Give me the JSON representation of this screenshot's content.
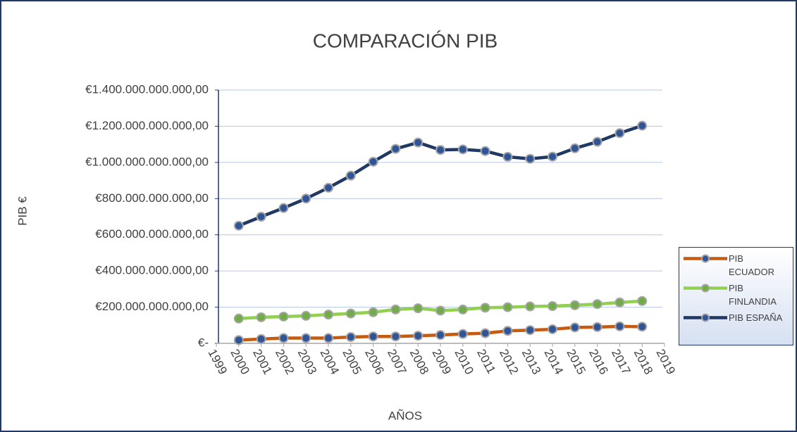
{
  "chart_data": {
    "type": "line",
    "title": "COMPARACIÓN PIB",
    "y_label": "PIB €",
    "x_label": "AÑOS",
    "x": [
      2000,
      2001,
      2002,
      2003,
      2004,
      2005,
      2006,
      2007,
      2008,
      2009,
      2010,
      2011,
      2012,
      2013,
      2014,
      2015,
      2016,
      2017,
      2018
    ],
    "xlim": [
      1999,
      2019
    ],
    "xticks": [
      1999,
      2000,
      2001,
      2002,
      2003,
      2004,
      2005,
      2006,
      2007,
      2008,
      2009,
      2010,
      2011,
      2012,
      2013,
      2014,
      2015,
      2016,
      2017,
      2018,
      2019
    ],
    "ylim": [
      0,
      1400000000000
    ],
    "yticks": [
      {
        "value": 0,
        "label": "€-"
      },
      {
        "value": 200000000000,
        "label": "€200.000.000.000,00"
      },
      {
        "value": 400000000000,
        "label": "€400.000.000.000,00"
      },
      {
        "value": 600000000000,
        "label": "€600.000.000.000,00"
      },
      {
        "value": 800000000000,
        "label": "€800.000.000.000,00"
      },
      {
        "value": 1000000000000,
        "label": "€1.000.000.000.000,00"
      },
      {
        "value": 1200000000000,
        "label": "€1.200.000.000.000,00"
      },
      {
        "value": 1400000000000,
        "label": "€1.400.000.000.000,00"
      }
    ],
    "grid": true,
    "legend": "right",
    "series": [
      {
        "name": "PIB ECUADOR",
        "color": "#c55a11",
        "marker_color": "#2f5597",
        "values": [
          18000000000,
          24000000000,
          29000000000,
          29000000000,
          29000000000,
          35000000000,
          38000000000,
          38000000000,
          42000000000,
          46000000000,
          52000000000,
          56000000000,
          69000000000,
          73000000000,
          78000000000,
          88000000000,
          90000000000,
          94000000000,
          92000000000
        ]
      },
      {
        "name": "PIB FINLANDIA",
        "color": "#92d050",
        "marker_color": "#70ad47",
        "values": [
          137000000000,
          144000000000,
          148000000000,
          152000000000,
          159000000000,
          165000000000,
          172000000000,
          187000000000,
          194000000000,
          181000000000,
          187000000000,
          197000000000,
          200000000000,
          204000000000,
          206000000000,
          211000000000,
          217000000000,
          226000000000,
          234000000000
        ]
      },
      {
        "name": "PIB ESPAÑA",
        "color": "#1f3864",
        "marker_color": "#2f5597",
        "values": [
          650000000000,
          700000000000,
          748000000000,
          800000000000,
          860000000000,
          927000000000,
          1004000000000,
          1075000000000,
          1110000000000,
          1069000000000,
          1072000000000,
          1063000000000,
          1031000000000,
          1020000000000,
          1032000000000,
          1078000000000,
          1114000000000,
          1162000000000,
          1203000000000
        ]
      }
    ]
  }
}
